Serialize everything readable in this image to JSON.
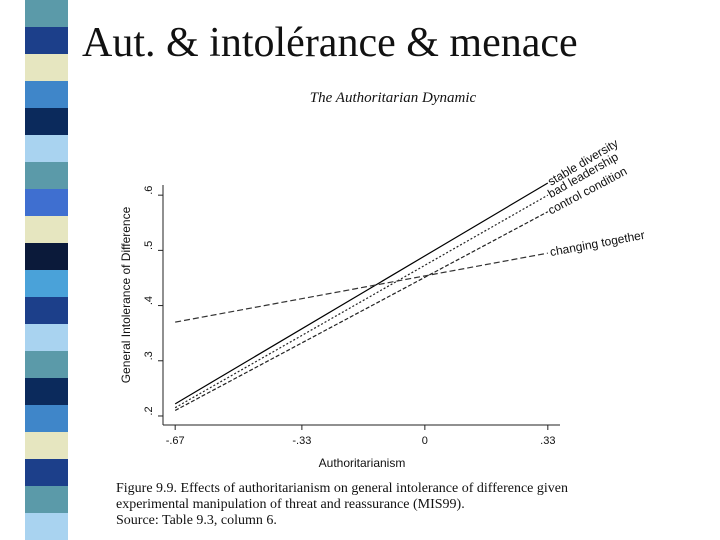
{
  "slide_title": "Aut. & intolérance & menace",
  "caption": [
    "Figure 9.9. Effects of authoritarianism on general intolerance of difference given",
    "experimental manipulation of threat and reassurance (MIS99).",
    "Source: Table 9.3, column 6."
  ],
  "chart_data": {
    "type": "line",
    "title": "The Authoritarian Dynamic",
    "x_label": "Authoritarianism",
    "y_label": "General Intolerance of Difference",
    "xlim": [
      -0.7,
      0.36
    ],
    "xticks": [
      {
        "value": -0.67,
        "label": "-.67"
      },
      {
        "value": -0.33,
        "label": "-.33"
      },
      0,
      {
        "value": 0.33,
        "label": ".33"
      }
    ],
    "ylim": [
      0.19,
      0.63
    ],
    "yticks": [
      {
        "value": 0.2,
        "label": ".2"
      },
      {
        "value": 0.3,
        "label": ".3"
      },
      {
        "value": 0.4,
        "label": ".4"
      },
      {
        "value": 0.5,
        "label": ".5"
      },
      {
        "value": 0.6,
        "label": ".6"
      }
    ],
    "x": [
      -0.67,
      0.33
    ],
    "series": [
      {
        "name": "stable diversity",
        "color": "#000000",
        "dash": "none",
        "values": [
          0.222,
          0.622
        ]
      },
      {
        "name": "bad leadership",
        "color": "#222222",
        "dash": "2,2",
        "values": [
          0.215,
          0.6
        ]
      },
      {
        "name": "control condition",
        "color": "#222222",
        "dash": "4,2",
        "values": [
          0.21,
          0.57
        ]
      },
      {
        "name": "changing together",
        "color": "#333333",
        "dash": "6,3",
        "values": [
          0.37,
          0.495
        ]
      }
    ]
  }
}
